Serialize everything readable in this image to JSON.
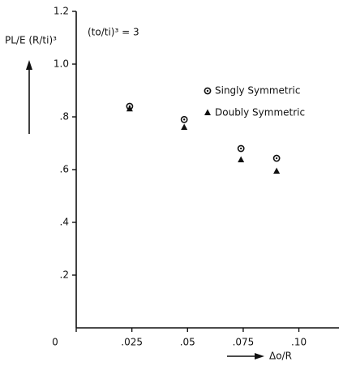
{
  "chart_data": {
    "type": "scatter",
    "y_label": "PL/E (R/ti)³",
    "x_label": "Δo/R",
    "annotation": "(to/ti)³ = 3",
    "xlim": [
      0,
      0.118
    ],
    "ylim": [
      0,
      1.2
    ],
    "xticks": [
      {
        "value": 0,
        "label": "0"
      },
      {
        "value": 0.025,
        "label": ".025"
      },
      {
        "value": 0.05,
        "label": ".05"
      },
      {
        "value": 0.075,
        "label": ".075"
      },
      {
        "value": 0.1,
        "label": ".10"
      }
    ],
    "yticks": [
      {
        "value": 0.2,
        "label": ".2"
      },
      {
        "value": 0.4,
        "label": ".4"
      },
      {
        "value": 0.6,
        "label": ".6"
      },
      {
        "value": 0.8,
        "label": ".8"
      },
      {
        "value": 1.0,
        "label": "1.0"
      },
      {
        "value": 1.2,
        "label": "1.2"
      }
    ],
    "series": [
      {
        "name": "Singly Symmetric",
        "color": "#111111",
        "marker": "circle",
        "x": [
          0.024,
          0.0485,
          0.074,
          0.09
        ],
        "values": [
          0.84,
          0.79,
          0.68,
          0.643
        ]
      },
      {
        "name": "Doubly Symmetric",
        "color": "#111111",
        "marker": "triangle",
        "x": [
          0.024,
          0.0485,
          0.074,
          0.09
        ],
        "values": [
          0.83,
          0.76,
          0.637,
          0.594
        ]
      }
    ]
  }
}
